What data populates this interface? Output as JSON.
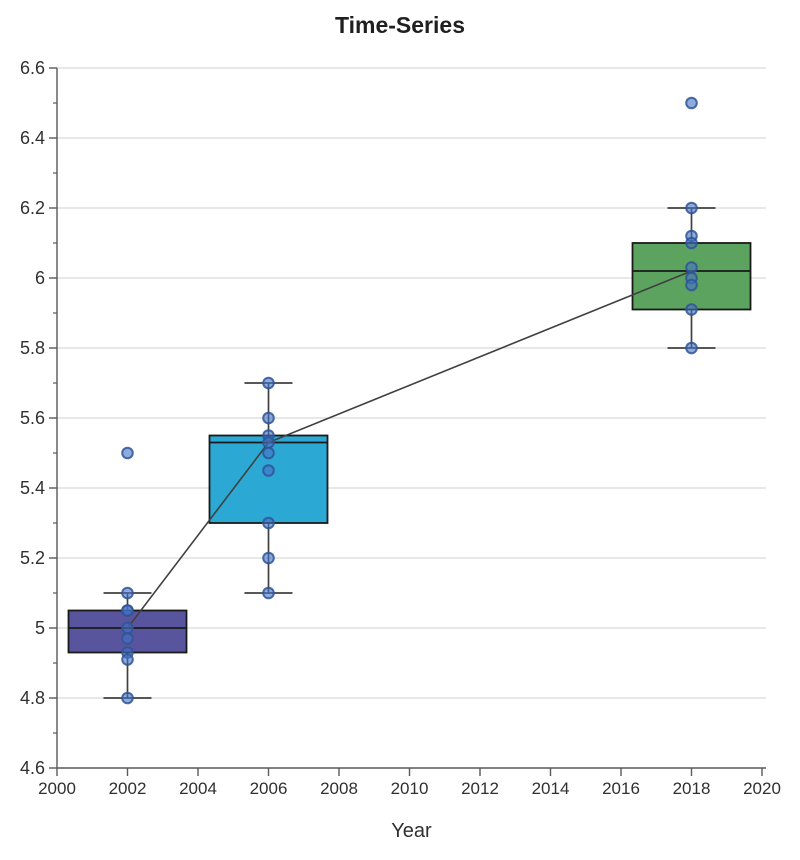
{
  "chart_data": {
    "type": "box",
    "title": "Time-Series",
    "xlabel": "Year",
    "ylabel": "",
    "xlim": [
      2000,
      2020
    ],
    "ylim": [
      4.6,
      6.6
    ],
    "grid": "horizontal-major",
    "legend": "none",
    "y_tick_values": [
      6.6,
      6.4,
      6.2,
      6.0,
      5.8,
      5.6,
      5.4,
      5.2,
      5.0,
      4.8,
      4.6
    ],
    "y_tick_labels": [
      "6.6",
      "6.4",
      "6.2",
      "6",
      "5.8",
      "5.6",
      "5.4",
      "5.2",
      "5",
      "4.8",
      "4.6"
    ],
    "y_minor_tick_values": [
      6.5,
      6.3,
      6.1,
      5.9,
      5.7,
      5.5,
      5.3,
      5.1,
      4.9,
      4.7
    ],
    "x_tick_values": [
      2000,
      2002,
      2004,
      2006,
      2008,
      2010,
      2012,
      2014,
      2016,
      2018,
      2020
    ],
    "x_tick_labels": [
      "2000",
      "2002",
      "2004",
      "2006",
      "2008",
      "2010",
      "2012",
      "2014",
      "2016",
      "2018",
      "2020"
    ],
    "series": [
      {
        "name": "2002",
        "x": 2002,
        "box_color": "#59549E",
        "whisker_low": 4.8,
        "q1": 4.93,
        "median": 5.0,
        "q3": 5.05,
        "whisker_high": 5.1,
        "outliers": [
          5.5
        ],
        "points": [
          5.5,
          5.1,
          5.05,
          5.05,
          5.0,
          4.97,
          4.93,
          4.91,
          4.8
        ]
      },
      {
        "name": "2006",
        "x": 2006,
        "box_color": "#2BA8D4",
        "whisker_low": 5.1,
        "q1": 5.3,
        "median": 5.53,
        "q3": 5.55,
        "whisker_high": 5.7,
        "outliers": [],
        "points": [
          5.7,
          5.6,
          5.55,
          5.53,
          5.5,
          5.45,
          5.3,
          5.2,
          5.1
        ]
      },
      {
        "name": "2018",
        "x": 2018,
        "box_color": "#5CA35F",
        "whisker_low": 5.8,
        "q1": 5.91,
        "median": 6.02,
        "q3": 6.1,
        "whisker_high": 6.2,
        "outliers": [
          6.5
        ],
        "points": [
          6.5,
          6.2,
          6.12,
          6.1,
          6.03,
          6.0,
          5.98,
          5.91,
          5.8
        ]
      }
    ],
    "trend_line": {
      "points": [
        {
          "x": 2002,
          "y": 5.0
        },
        {
          "x": 2006,
          "y": 5.53
        },
        {
          "x": 2018,
          "y": 6.02
        }
      ],
      "color": "#404040"
    },
    "marker": {
      "fill": "#4472C4",
      "fill_opacity": 0.6,
      "stroke": "#2F5597",
      "stroke_opacity": 0.85
    },
    "colors": {
      "grid": "#D9D9D9",
      "axis": "#595959",
      "tick_text": "#303030",
      "box_border": "#1A1A1A",
      "whisker": "#404040"
    }
  }
}
